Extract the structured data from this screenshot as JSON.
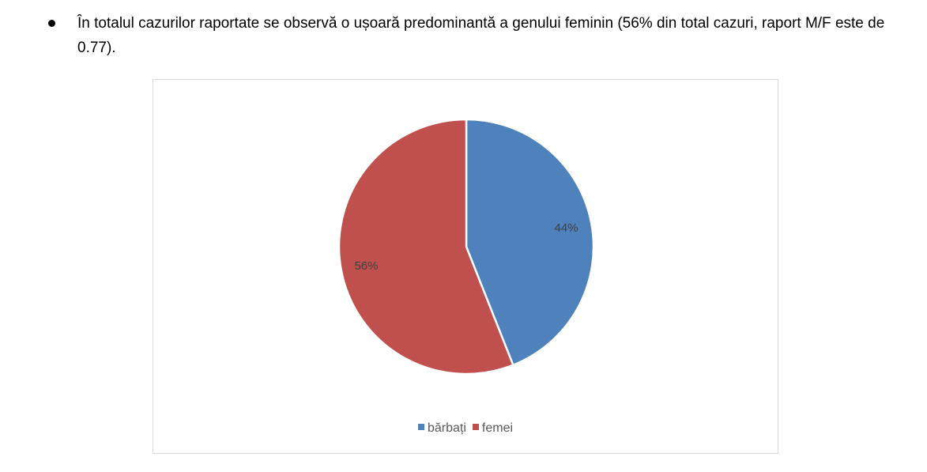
{
  "paragraph": {
    "text": "În totalul cazurilor raportate se observă o ușoară predominantă a genului feminin (56% din total cazuri, raport M/F este de 0.77)."
  },
  "chart_data": {
    "type": "pie",
    "title": "",
    "categories": [
      "bărbați",
      "femei"
    ],
    "values": [
      44,
      56
    ],
    "labels": [
      "44%",
      "56%"
    ],
    "colors": [
      "#4f81bd",
      "#c0504d"
    ],
    "legend": "bottom",
    "start_angle": "12 o'clock, clockwise"
  }
}
